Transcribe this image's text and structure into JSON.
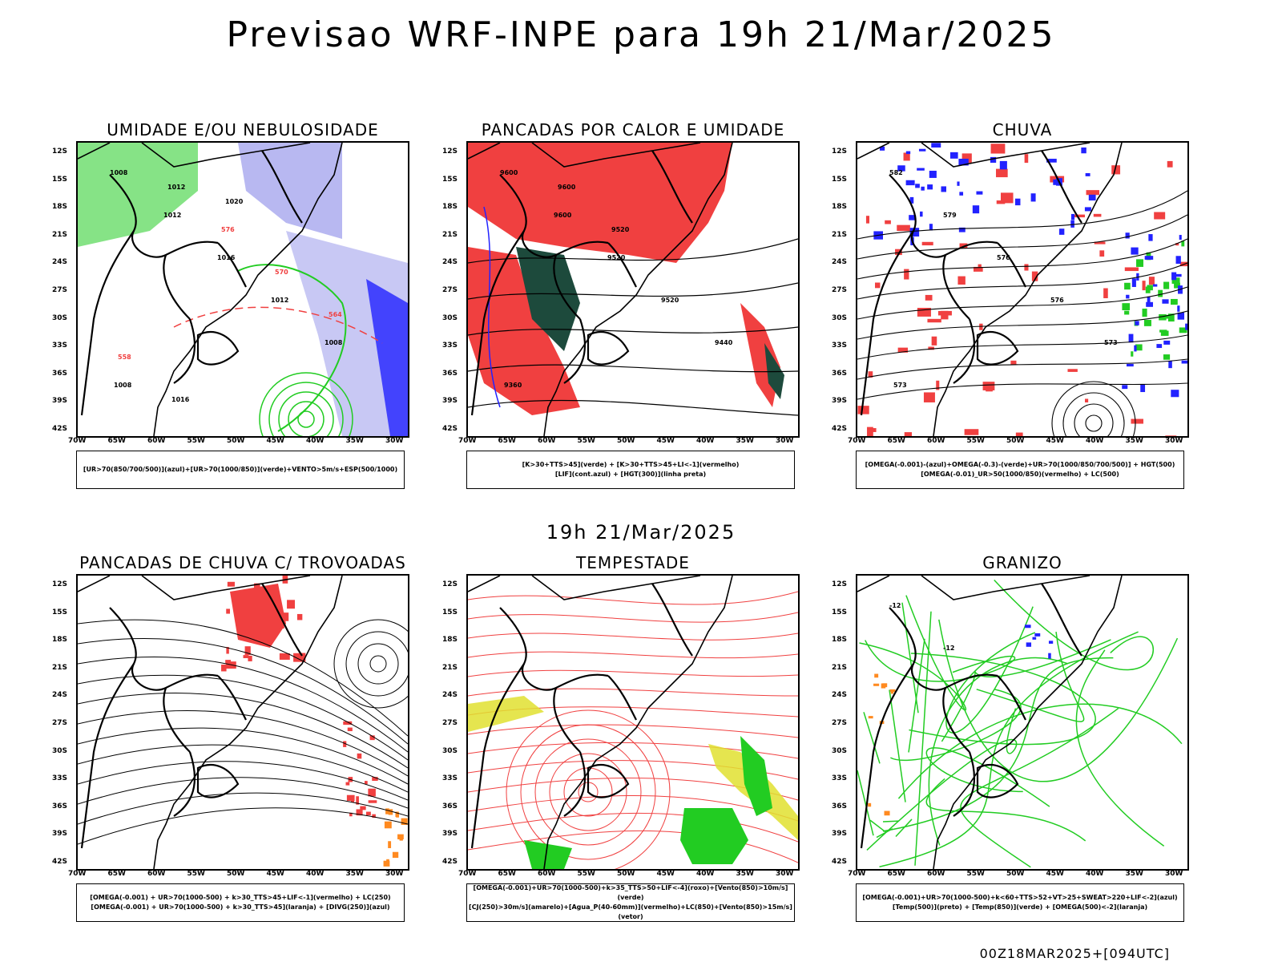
{
  "title": "Previsao WRF-INPE  para 19h 21/Mar/2025",
  "middle_label": "19h 21/Mar/2025",
  "footer": "00Z18MAR2025+[094UTC]",
  "lat_ticks": [
    "12S",
    "15S",
    "18S",
    "21S",
    "24S",
    "27S",
    "30S",
    "33S",
    "36S",
    "39S",
    "42S"
  ],
  "lon_ticks": [
    "70W",
    "65W",
    "60W",
    "55W",
    "50W",
    "45W",
    "40W",
    "35W",
    "30W"
  ],
  "colors": {
    "red": "#f04040",
    "green": "#22cc22",
    "blue": "#2222ff",
    "lavender": "#b0b0f0",
    "darkgreen": "#1d4a3c",
    "yellow": "#e0e030",
    "orange": "#ff8a20",
    "lightgreen": "#ccf0cc",
    "black": "#000000"
  },
  "panels": [
    {
      "title": "UMIDADE E/OU NEBULOSIDADE",
      "legend": [
        "[UR>70(850/700/500)](azul)+[UR>70(1000/850)](verde)+VENTO>5m/s+ESP(500/1000)"
      ],
      "labels": [
        "1008",
        "1012",
        "1016",
        "1012",
        "1008",
        "1008",
        "1012",
        "576",
        "570",
        "564",
        "558",
        "1016",
        "1020"
      ]
    },
    {
      "title": "PANCADAS POR CALOR E UMIDADE",
      "legend": [
        "[K>30+TTS>45](verde)  +  [K>30+TTS>45+LI<-1](vermelho)",
        "[LIF](cont.azul)  +  [HGT(300)](linha preta)"
      ],
      "labels": [
        "9600",
        "9600",
        "9520",
        "9520",
        "9440",
        "9360",
        "9600",
        "9520"
      ]
    },
    {
      "title": "CHUVA",
      "legend": [
        "[OMEGA(-0.001)-(azul)+OMEGA(-0.3)-(verde)+UR>70(1000/850/700/500)]  +  HGT(500)",
        "[OMEGA(-0.01)_UR>50(1000/850)(vermelho)  +  LC(500)"
      ],
      "labels": [
        "582",
        "579",
        "576",
        "576",
        "573",
        "573"
      ]
    },
    {
      "title": "PANCADAS DE CHUVA C/ TROVOADAS",
      "legend": [
        "[OMEGA(-0.001)  +  UR>70(1000-500)  +  k>30_TTS>45+LIF<-1](vermelho)  +  LC(250)",
        "[OMEGA(-0.001)  +  UR>70(1000-500)  +  k>30_TTS>45](laranja)  +  [DIVG(250)](azul)"
      ],
      "labels": []
    },
    {
      "title": "TEMPESTADE",
      "legend": [
        "[OMEGA(-0.001)+UR>70(1000-500)+k>35_TTS>50+LIF<-4](roxo)+[Vento(850)>10m/s](verde)",
        "[CJ(250)>30m/s](amarelo)+[Agua_P(40-60mm)](vermelho)+LC(850)+[Vento(850)>15m/s](vetor)"
      ],
      "labels": []
    },
    {
      "title": "GRANIZO",
      "legend": [
        "[OMEGA(-0.001)+UR>70(1000-500)+k<60+TTS>52+VT>25+SWEAT>220+LIF<-2](azul)",
        "[Temp(500)](preto)  +  [Temp(850)](verde)  +  [OMEGA(500)<-2](laranja)"
      ],
      "labels": [
        "-12",
        "-12"
      ]
    }
  ]
}
